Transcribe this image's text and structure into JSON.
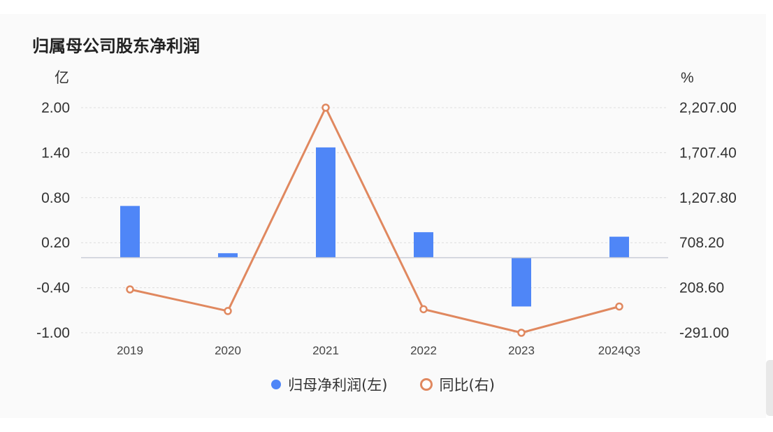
{
  "title": "归属母公司股东净利润",
  "chart_data": {
    "type": "bar",
    "categories": [
      "2019",
      "2020",
      "2021",
      "2022",
      "2023",
      "2024Q3"
    ],
    "series": [
      {
        "name": "归母净利润(左)",
        "type": "bar",
        "axis": "left",
        "color": "#4f86f7",
        "values": [
          0.69,
          0.06,
          1.47,
          0.34,
          -0.65,
          0.28
        ]
      },
      {
        "name": "同比(右)",
        "type": "line",
        "axis": "right",
        "color": "#e0885f",
        "values": [
          190,
          -50,
          2207,
          -30,
          -291,
          0
        ]
      }
    ],
    "y_left": {
      "unit": "亿",
      "ylim": [
        -1.0,
        2.0
      ],
      "ticks": [
        "2.00",
        "1.40",
        "0.80",
        "0.20",
        "-0.40",
        "-1.00"
      ],
      "tick_values": [
        2.0,
        1.4,
        0.8,
        0.2,
        -0.4,
        -1.0
      ]
    },
    "y_right": {
      "unit": "%",
      "ylim": [
        -291.0,
        2207.0
      ],
      "ticks": [
        "2,207.00",
        "1,707.40",
        "1,207.80",
        "708.20",
        "208.60",
        "-291.00"
      ],
      "tick_values": [
        2207.0,
        1707.4,
        1207.8,
        708.2,
        208.6,
        -291.0
      ]
    },
    "grid": true,
    "legend": "bottom-center"
  }
}
